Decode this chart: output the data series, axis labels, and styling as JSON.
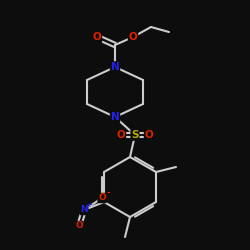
{
  "bg_color": "#0d0d0d",
  "bond_color": "#cccccc",
  "bond_width": 1.5,
  "atom_colors": {
    "O": "#dd2200",
    "N": "#2222ee",
    "S": "#bbaa00",
    "C": "#cccccc"
  },
  "figsize": [
    2.5,
    2.5
  ],
  "dpi": 100
}
